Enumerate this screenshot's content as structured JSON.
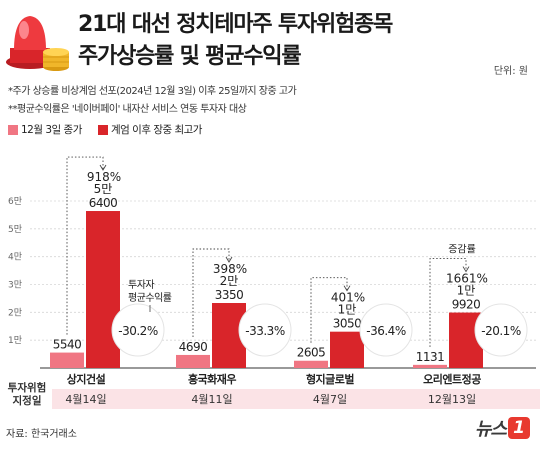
{
  "header": {
    "title_line1": "21대 대선 정치테마주 투자위험종목",
    "title_line2": "주가상승률 및 평균수익률",
    "unit": "단위: 원"
  },
  "notes": [
    "*주가 상승률 비상계엄 선포(2024년 12월 3일) 이후 25일까지 장중 고가",
    "**평균수익률은 '네이버페이' 내자산 서비스 연동 투자자 대상"
  ],
  "legend": {
    "dec3": "12월 3일 종가",
    "high": "계엄 이후 장중 최고가"
  },
  "colors": {
    "dec3": "#f07683",
    "high": "#d9252a",
    "band": "#fbe3e6"
  },
  "footer": {
    "designation_label": "투자위험 지정일",
    "source": "자료: 한국거래소",
    "logo_text": "뉴스",
    "logo_mark": "1"
  },
  "chart_data": {
    "type": "bar",
    "categories": [
      "상지건설",
      "흥국화재우",
      "형지글로벌",
      "오리엔트정공"
    ],
    "designation_dates": [
      "4월14일",
      "4월11일",
      "4월7일",
      "12월13일"
    ],
    "series": [
      {
        "name": "12월 3일 종가",
        "values": [
          5540,
          4690,
          2605,
          1131
        ]
      },
      {
        "name": "계엄 이후 장중 최고가",
        "values": [
          56400,
          23350,
          13050,
          19920
        ]
      }
    ],
    "value_labels_dec3": [
      "5540",
      "4690",
      "2605",
      "1131"
    ],
    "value_labels_high": [
      [
        "5만",
        "6400"
      ],
      [
        "2만",
        "3350"
      ],
      [
        "1만",
        "3050"
      ],
      [
        "1만",
        "9920"
      ]
    ],
    "rise_labels": [
      "918%",
      "398%",
      "401%",
      "1661%"
    ],
    "rise_prefix": [
      "",
      "",
      "",
      "증감률"
    ],
    "avg_return_title": [
      "투자자",
      "평균수익률"
    ],
    "avg_returns": [
      "-30.2%",
      "-33.3%",
      "-36.4%",
      "-20.1%"
    ],
    "yticks": [
      10000,
      20000,
      30000,
      40000,
      50000,
      60000
    ],
    "ytick_labels": [
      "1만",
      "2만",
      "3만",
      "4만",
      "5만",
      "6만"
    ],
    "ylim": [
      0,
      60000
    ],
    "grid": true
  }
}
